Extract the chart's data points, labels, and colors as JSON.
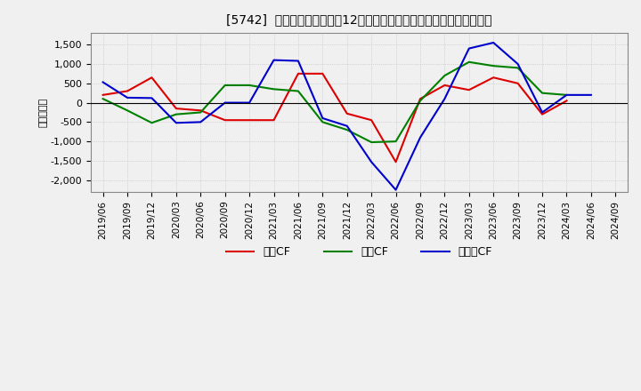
{
  "title": "[5742]  キャッシュフローの12か月移動合計の対前年同期増減額の推移",
  "ylabel": "（百万円）",
  "x_labels": [
    "2019/06",
    "2019/09",
    "2019/12",
    "2020/03",
    "2020/06",
    "2020/09",
    "2020/12",
    "2021/03",
    "2021/06",
    "2021/09",
    "2021/12",
    "2022/03",
    "2022/06",
    "2022/09",
    "2022/12",
    "2023/03",
    "2023/06",
    "2023/09",
    "2023/12",
    "2024/03",
    "2024/06",
    "2024/09"
  ],
  "series": {
    "営業CF": {
      "color": "#dd0000",
      "data": [
        200,
        300,
        650,
        -150,
        -200,
        -450,
        -450,
        -450,
        750,
        750,
        -280,
        -450,
        -1530,
        100,
        450,
        330,
        650,
        500,
        -300,
        50,
        null,
        null
      ]
    },
    "投資CF": {
      "color": "#008000",
      "data": [
        100,
        -200,
        -520,
        -300,
        -250,
        450,
        450,
        350,
        300,
        -500,
        -700,
        -1020,
        -1000,
        50,
        700,
        1050,
        950,
        900,
        250,
        200,
        null,
        null
      ]
    },
    "フリーCF": {
      "color": "#0000cc",
      "data": [
        530,
        130,
        120,
        -520,
        -500,
        0,
        0,
        1100,
        1080,
        -400,
        -600,
        -1530,
        -2250,
        -900,
        100,
        1400,
        1550,
        1000,
        -250,
        200,
        200,
        null
      ]
    }
  },
  "ylim": [
    -2300,
    1800
  ],
  "yticks": [
    -2000,
    -1500,
    -1000,
    -500,
    0,
    500,
    1000,
    1500
  ],
  "background_color": "#f0f0f0",
  "plot_bg_color": "#f0f0f0",
  "grid_color": "#aaaaaa",
  "legend_labels": [
    "営業CF",
    "投資CF",
    "フリーCF"
  ],
  "legend_colors": [
    "#dd0000",
    "#008000",
    "#0000cc"
  ]
}
